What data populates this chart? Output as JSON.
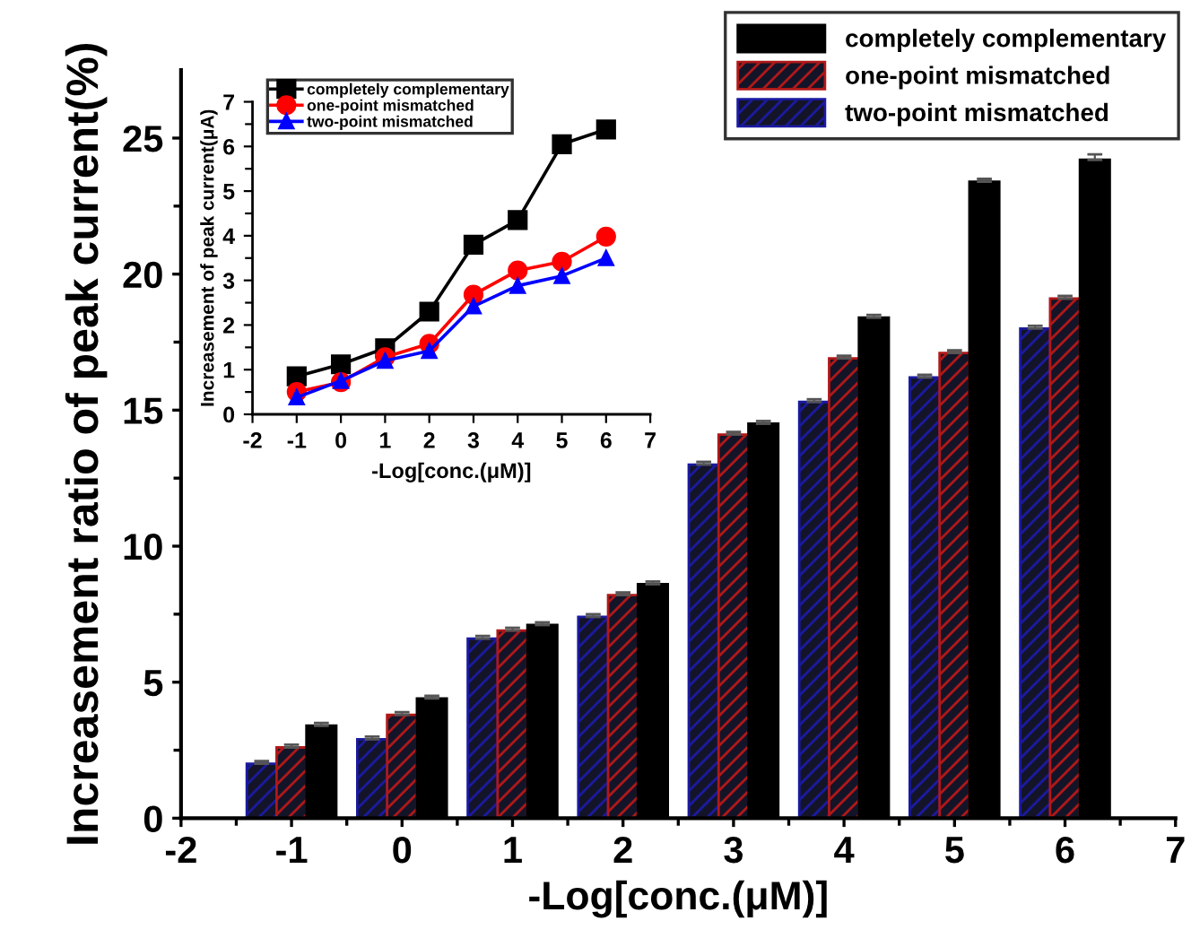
{
  "chart_data": [
    {
      "type": "bar",
      "xlabel": "-Log[conc.(μM)]",
      "ylabel": "Increasement ratio of peak current(%)",
      "x": [
        -1,
        0,
        1,
        2,
        3,
        4,
        5,
        6
      ],
      "series": [
        {
          "name": "two-point mismatched",
          "color": "#1a1aa0",
          "values": [
            2.0,
            2.9,
            6.6,
            7.4,
            13.0,
            15.3,
            16.2,
            18.0
          ],
          "errors": [
            0.1,
            0.1,
            0.1,
            0.1,
            0.1,
            0.1,
            0.1,
            0.1
          ]
        },
        {
          "name": "one-point mismatched",
          "color": "#b01818",
          "values": [
            2.6,
            3.8,
            6.9,
            8.2,
            14.1,
            16.9,
            17.1,
            19.1
          ],
          "errors": [
            0.1,
            0.1,
            0.1,
            0.1,
            0.1,
            0.1,
            0.1,
            0.1
          ]
        },
        {
          "name": "completely complementary",
          "color": "#000000",
          "values": [
            3.4,
            4.4,
            7.1,
            8.6,
            14.5,
            18.4,
            23.4,
            24.2
          ],
          "errors": [
            0.1,
            0.1,
            0.1,
            0.1,
            0.1,
            0.1,
            0.1,
            0.2
          ]
        }
      ],
      "xlim": [
        -2,
        7
      ],
      "ylim": [
        0,
        27.5
      ],
      "xticks": [
        -2,
        {
          "value": -1.5,
          "label": null
        },
        -1,
        {
          "value": -0.5,
          "label": null
        },
        0,
        {
          "value": 0.5,
          "label": null
        },
        1,
        {
          "value": 1.5,
          "label": null
        },
        2,
        {
          "value": 2.5,
          "label": null
        },
        3,
        {
          "value": 3.5,
          "label": null
        },
        4,
        {
          "value": 4.5,
          "label": null
        },
        5,
        {
          "value": 5.5,
          "label": null
        },
        6,
        {
          "value": 6.5,
          "label": null
        },
        7
      ],
      "yticks": [
        0,
        {
          "value": 2.5,
          "label": null
        },
        5,
        {
          "value": 7.5,
          "label": null
        },
        10,
        {
          "value": 12.5,
          "label": null
        },
        15,
        {
          "value": 17.5,
          "label": null
        },
        20,
        {
          "value": 22.5,
          "label": null
        },
        25
      ],
      "legend": "top right",
      "grid": false
    },
    {
      "type": "line",
      "xlabel": "-Log[conc.(μM)]",
      "ylabel": "Increasement of peak current(μA)",
      "x": [
        -1,
        0,
        1,
        2,
        3,
        4,
        5,
        6
      ],
      "series": [
        {
          "name": "completely complementary",
          "color": "#000000",
          "marker": "square",
          "values": [
            0.85,
            1.12,
            1.48,
            2.3,
            3.8,
            4.35,
            6.05,
            6.38
          ]
        },
        {
          "name": "one-point mismatched",
          "color": "#ff0000",
          "marker": "circle",
          "values": [
            0.5,
            0.72,
            1.28,
            1.58,
            2.68,
            3.22,
            3.42,
            3.98
          ]
        },
        {
          "name": "two-point mismatched",
          "color": "#0000ff",
          "marker": "triangle",
          "values": [
            0.38,
            0.75,
            1.2,
            1.42,
            2.42,
            2.88,
            3.1,
            3.5
          ]
        }
      ],
      "xlim": [
        -2,
        7
      ],
      "ylim": [
        0,
        7
      ],
      "xticks": [
        -2,
        -1,
        0,
        1,
        2,
        3,
        4,
        5,
        6,
        7
      ],
      "yticks": [
        0,
        {
          "value": 0.5,
          "label": null
        },
        1,
        {
          "value": 1.5,
          "label": null
        },
        2,
        {
          "value": 2.5,
          "label": null
        },
        3,
        {
          "value": 3.5,
          "label": null
        },
        4,
        {
          "value": 4.5,
          "label": null
        },
        5,
        {
          "value": 5.5,
          "label": null
        },
        6,
        {
          "value": 6.5,
          "label": null
        },
        7
      ],
      "legend": "top left",
      "grid": false,
      "line_style": "solid"
    }
  ]
}
